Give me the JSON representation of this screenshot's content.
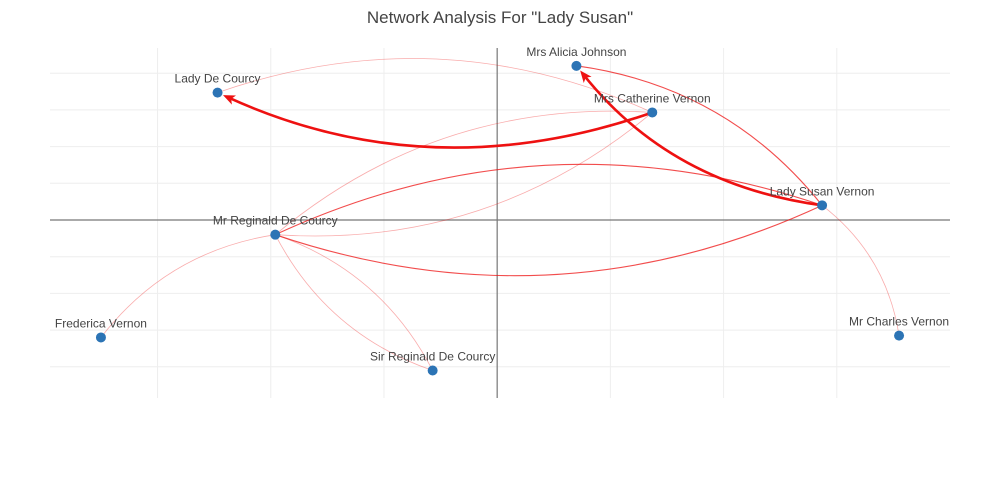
{
  "title": "Network Analysis For \"Lady Susan\"",
  "colors": {
    "node": "#2c74b5",
    "edge": "#ee1111",
    "grid": "#eeeeee",
    "axis": "#777777"
  },
  "chart_data": {
    "type": "network",
    "title": "Network Analysis For \"Lady Susan\"",
    "xlim": [
      -3.95,
      4.0
    ],
    "ylim": [
      -4.85,
      4.85
    ],
    "grid": true,
    "nodes": [
      {
        "id": "lady_susan_vernon",
        "label": "Lady Susan Vernon",
        "x": 2.87,
        "y": 0.4
      },
      {
        "id": "mrs_alicia_johnson",
        "label": "Mrs Alicia Johnson",
        "x": 0.7,
        "y": 4.2
      },
      {
        "id": "mrs_catherine_vernon",
        "label": "Mrs Catherine Vernon",
        "x": 1.37,
        "y": 2.93
      },
      {
        "id": "lady_de_courcy",
        "label": "Lady De Courcy",
        "x": -2.47,
        "y": 3.47
      },
      {
        "id": "mr_reginald_de_courcy",
        "label": "Mr Reginald De Courcy",
        "x": -1.96,
        "y": -0.4
      },
      {
        "id": "frederica_vernon",
        "label": "Frederica Vernon",
        "x": -3.5,
        "y": -3.2
      },
      {
        "id": "sir_reginald_de_courcy",
        "label": "Sir Reginald De Courcy",
        "x": -0.57,
        "y": -4.1
      },
      {
        "id": "mr_charles_vernon",
        "label": "Mr Charles Vernon",
        "x": 3.55,
        "y": -3.15
      }
    ],
    "edges": [
      {
        "source": "lady_susan_vernon",
        "target": "mrs_alicia_johnson",
        "weight": 3,
        "arrow": true
      },
      {
        "source": "mrs_catherine_vernon",
        "target": "lady_de_courcy",
        "weight": 3,
        "arrow": true
      },
      {
        "source": "mrs_alicia_johnson",
        "target": "lady_susan_vernon",
        "weight": 2,
        "arrow": false
      },
      {
        "source": "lady_susan_vernon",
        "target": "mr_reginald_de_courcy",
        "weight": 2,
        "arrow": false
      },
      {
        "source": "mr_reginald_de_courcy",
        "target": "lady_susan_vernon",
        "weight": 2,
        "arrow": false
      },
      {
        "source": "lady_de_courcy",
        "target": "mrs_catherine_vernon",
        "weight": 1,
        "arrow": false
      },
      {
        "source": "mr_reginald_de_courcy",
        "target": "mrs_catherine_vernon",
        "weight": 1,
        "arrow": false
      },
      {
        "source": "mrs_catherine_vernon",
        "target": "mr_reginald_de_courcy",
        "weight": 1,
        "arrow": false
      },
      {
        "source": "frederica_vernon",
        "target": "mr_reginald_de_courcy",
        "weight": 1,
        "arrow": false
      },
      {
        "source": "mr_reginald_de_courcy",
        "target": "sir_reginald_de_courcy",
        "weight": 1,
        "arrow": false
      },
      {
        "source": "sir_reginald_de_courcy",
        "target": "mr_reginald_de_courcy",
        "weight": 1,
        "arrow": false
      },
      {
        "source": "lady_susan_vernon",
        "target": "mr_charles_vernon",
        "weight": 1,
        "arrow": false
      }
    ]
  }
}
